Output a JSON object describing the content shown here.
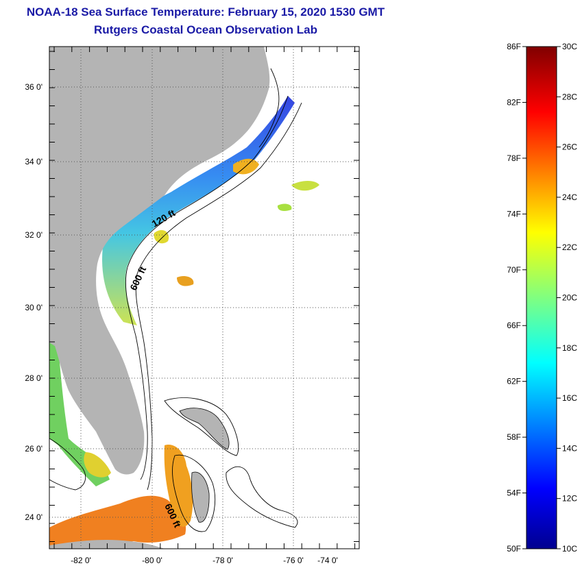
{
  "header": {
    "title": "NOAA-18 Sea Surface Temperature:  February 15, 2020 1530 GMT",
    "subtitle": "Rutgers Coastal Ocean Observation Lab"
  },
  "map": {
    "lat_labels": [
      "36 0'",
      "34 0'",
      "32 0'",
      "30 0'",
      "28 0'",
      "26 0'",
      "24 0'"
    ],
    "lon_labels": [
      "-82 0'",
      "-80 0'",
      "-78 0'",
      "-76 0'",
      "-74 0'"
    ],
    "contour_labels": [
      "120 ft",
      "600 ft",
      "600 ft"
    ],
    "colors": {
      "land": "#b4b4b4",
      "cold": "#1040e0",
      "warm": "#f08020"
    }
  },
  "colorbar": {
    "fahrenheit": [
      "86F",
      "82F",
      "78F",
      "74F",
      "70F",
      "66F",
      "62F",
      "58F",
      "54F",
      "50F"
    ],
    "celsius": [
      "30C",
      "28C",
      "26C",
      "24C",
      "22C",
      "20C",
      "18C",
      "16C",
      "14C",
      "12C",
      "10C"
    ]
  }
}
